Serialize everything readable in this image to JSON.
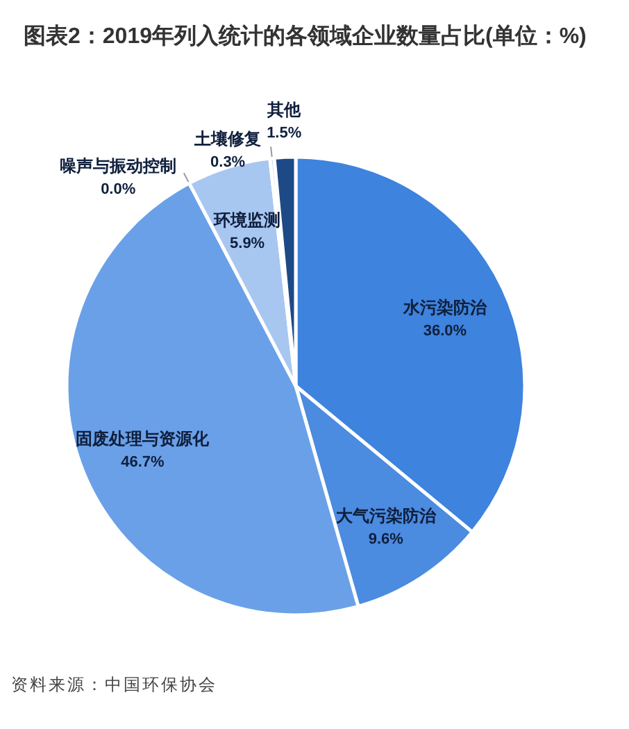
{
  "chart_data": {
    "type": "pie",
    "title": "图表2：2019年列入统计的各领域企业数量占比(单位：%)",
    "categories": [
      "水污染防治",
      "大气污染防治",
      "固废处理与资源化",
      "噪声与振动控制",
      "环境监测",
      "土壤修复",
      "其他"
    ],
    "values": [
      36.0,
      9.6,
      46.7,
      0.0,
      5.9,
      0.3,
      1.5
    ],
    "colors": [
      "#3e83dd",
      "#4b8be0",
      "#6aa0e8",
      null,
      "#a7c7f1",
      "#c9dcf5",
      "#1d4a87"
    ],
    "value_labels": [
      "36.0%",
      "9.6%",
      "46.7%",
      "0.0%",
      "5.9%",
      "0.3%",
      "1.5%"
    ],
    "annotations": [
      "资料来源：中国环保协会"
    ]
  }
}
